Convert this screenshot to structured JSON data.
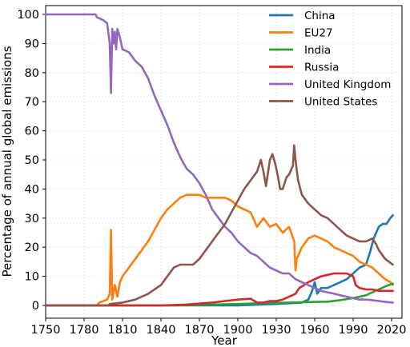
{
  "chart_data": {
    "type": "line",
    "xlabel": "Year",
    "ylabel": "Percentage of annual global emissions",
    "xlim": [
      1750,
      2022
    ],
    "ylim": [
      0,
      100
    ],
    "xticks": [
      1750,
      1780,
      1810,
      1840,
      1870,
      1900,
      1930,
      1960,
      1990,
      2020
    ],
    "yticks": [
      0,
      10,
      20,
      30,
      40,
      50,
      60,
      70,
      80,
      90,
      100
    ],
    "grid": true,
    "legend_position": "top-right",
    "series": [
      {
        "name": "China",
        "color": "#1f77b4",
        "points": [
          [
            1750,
            0
          ],
          [
            1900,
            0
          ],
          [
            1930,
            0.5
          ],
          [
            1950,
            1
          ],
          [
            1955,
            2
          ],
          [
            1958,
            5
          ],
          [
            1960,
            8
          ],
          [
            1962,
            4
          ],
          [
            1965,
            6
          ],
          [
            1970,
            6
          ],
          [
            1975,
            7
          ],
          [
            1980,
            8
          ],
          [
            1985,
            9
          ],
          [
            1990,
            11
          ],
          [
            1995,
            13
          ],
          [
            2000,
            14
          ],
          [
            2003,
            18
          ],
          [
            2006,
            23
          ],
          [
            2010,
            27
          ],
          [
            2013,
            28
          ],
          [
            2016,
            28
          ],
          [
            2019,
            30
          ],
          [
            2021,
            31
          ]
        ]
      },
      {
        "name": "EU27",
        "color": "#ff7f0e",
        "points": [
          [
            1750,
            0
          ],
          [
            1790,
            0
          ],
          [
            1792,
            1
          ],
          [
            1798,
            2
          ],
          [
            1800,
            4
          ],
          [
            1801,
            26
          ],
          [
            1802,
            2
          ],
          [
            1804,
            7
          ],
          [
            1806,
            3
          ],
          [
            1808,
            8
          ],
          [
            1810,
            10
          ],
          [
            1815,
            13
          ],
          [
            1820,
            16
          ],
          [
            1825,
            19
          ],
          [
            1830,
            22
          ],
          [
            1835,
            26
          ],
          [
            1840,
            30
          ],
          [
            1845,
            33
          ],
          [
            1850,
            35
          ],
          [
            1855,
            37
          ],
          [
            1860,
            38
          ],
          [
            1865,
            38
          ],
          [
            1870,
            38
          ],
          [
            1875,
            37
          ],
          [
            1880,
            37
          ],
          [
            1885,
            37
          ],
          [
            1890,
            37
          ],
          [
            1895,
            36
          ],
          [
            1900,
            34
          ],
          [
            1905,
            33
          ],
          [
            1910,
            32
          ],
          [
            1915,
            27
          ],
          [
            1920,
            30
          ],
          [
            1925,
            27
          ],
          [
            1930,
            28
          ],
          [
            1935,
            25
          ],
          [
            1940,
            27
          ],
          [
            1944,
            22
          ],
          [
            1945,
            12
          ],
          [
            1946,
            16
          ],
          [
            1948,
            18
          ],
          [
            1950,
            20
          ],
          [
            1955,
            23
          ],
          [
            1960,
            24
          ],
          [
            1965,
            23
          ],
          [
            1970,
            22
          ],
          [
            1975,
            20
          ],
          [
            1980,
            19
          ],
          [
            1985,
            18
          ],
          [
            1990,
            17
          ],
          [
            1995,
            15
          ],
          [
            2000,
            14
          ],
          [
            2005,
            13
          ],
          [
            2010,
            11
          ],
          [
            2015,
            9
          ],
          [
            2019,
            8
          ],
          [
            2021,
            7
          ]
        ]
      },
      {
        "name": "India",
        "color": "#2ca02c",
        "points": [
          [
            1750,
            0
          ],
          [
            1850,
            0
          ],
          [
            1880,
            0.3
          ],
          [
            1900,
            0.5
          ],
          [
            1920,
            0.8
          ],
          [
            1940,
            1
          ],
          [
            1960,
            1.2
          ],
          [
            1970,
            1.3
          ],
          [
            1980,
            1.8
          ],
          [
            1990,
            2.5
          ],
          [
            2000,
            3.5
          ],
          [
            2010,
            5.5
          ],
          [
            2015,
            6.5
          ],
          [
            2021,
            7.5
          ]
        ]
      },
      {
        "name": "Russia",
        "color": "#d62728",
        "points": [
          [
            1750,
            0
          ],
          [
            1840,
            0
          ],
          [
            1860,
            0.3
          ],
          [
            1880,
            1
          ],
          [
            1890,
            1.5
          ],
          [
            1900,
            2
          ],
          [
            1910,
            2.3
          ],
          [
            1915,
            1
          ],
          [
            1920,
            1
          ],
          [
            1925,
            1.5
          ],
          [
            1930,
            1.5
          ],
          [
            1935,
            2
          ],
          [
            1940,
            3
          ],
          [
            1945,
            4
          ],
          [
            1948,
            6
          ],
          [
            1950,
            6.5
          ],
          [
            1955,
            8
          ],
          [
            1960,
            9
          ],
          [
            1965,
            10
          ],
          [
            1970,
            10.5
          ],
          [
            1975,
            11
          ],
          [
            1980,
            11
          ],
          [
            1985,
            11
          ],
          [
            1990,
            10
          ],
          [
            1992,
            7
          ],
          [
            1995,
            6
          ],
          [
            2000,
            5.5
          ],
          [
            2005,
            5.5
          ],
          [
            2010,
            5
          ],
          [
            2015,
            5
          ],
          [
            2021,
            5
          ]
        ]
      },
      {
        "name": "United Kingdom",
        "color": "#9467bd",
        "points": [
          [
            1750,
            100
          ],
          [
            1789,
            100
          ],
          [
            1790,
            99
          ],
          [
            1795,
            98
          ],
          [
            1798,
            97
          ],
          [
            1800,
            90
          ],
          [
            1801,
            73
          ],
          [
            1802,
            95
          ],
          [
            1803,
            90
          ],
          [
            1804,
            94
          ],
          [
            1805,
            88
          ],
          [
            1806,
            95
          ],
          [
            1808,
            92
          ],
          [
            1810,
            88
          ],
          [
            1815,
            87
          ],
          [
            1820,
            84
          ],
          [
            1825,
            82
          ],
          [
            1830,
            78
          ],
          [
            1835,
            72
          ],
          [
            1840,
            67
          ],
          [
            1845,
            62
          ],
          [
            1850,
            56
          ],
          [
            1855,
            51
          ],
          [
            1860,
            47
          ],
          [
            1865,
            45
          ],
          [
            1870,
            42
          ],
          [
            1875,
            38
          ],
          [
            1880,
            33
          ],
          [
            1885,
            30
          ],
          [
            1890,
            27
          ],
          [
            1895,
            25
          ],
          [
            1900,
            22
          ],
          [
            1905,
            20
          ],
          [
            1910,
            18
          ],
          [
            1915,
            17
          ],
          [
            1920,
            15
          ],
          [
            1925,
            13
          ],
          [
            1930,
            12
          ],
          [
            1935,
            11
          ],
          [
            1940,
            11
          ],
          [
            1945,
            9
          ],
          [
            1950,
            8
          ],
          [
            1955,
            7
          ],
          [
            1960,
            6
          ],
          [
            1965,
            5
          ],
          [
            1970,
            4.5
          ],
          [
            1975,
            4
          ],
          [
            1980,
            3.5
          ],
          [
            1985,
            3
          ],
          [
            1990,
            2.5
          ],
          [
            1995,
            2
          ],
          [
            2000,
            2
          ],
          [
            2005,
            1.8
          ],
          [
            2010,
            1.5
          ],
          [
            2015,
            1.2
          ],
          [
            2021,
            1
          ]
        ]
      },
      {
        "name": "United States",
        "color": "#8c564b",
        "points": [
          [
            1750,
            0
          ],
          [
            1799,
            0
          ],
          [
            1800,
            0.5
          ],
          [
            1810,
            1
          ],
          [
            1820,
            2
          ],
          [
            1830,
            4
          ],
          [
            1840,
            7
          ],
          [
            1850,
            13
          ],
          [
            1855,
            14
          ],
          [
            1860,
            14
          ],
          [
            1865,
            14
          ],
          [
            1870,
            16
          ],
          [
            1875,
            19
          ],
          [
            1880,
            22
          ],
          [
            1885,
            25
          ],
          [
            1890,
            28
          ],
          [
            1895,
            32
          ],
          [
            1900,
            36
          ],
          [
            1905,
            40
          ],
          [
            1910,
            43
          ],
          [
            1915,
            46
          ],
          [
            1918,
            50
          ],
          [
            1920,
            46
          ],
          [
            1922,
            41
          ],
          [
            1925,
            50
          ],
          [
            1927,
            52
          ],
          [
            1929,
            49
          ],
          [
            1931,
            45
          ],
          [
            1933,
            40
          ],
          [
            1935,
            40
          ],
          [
            1938,
            44
          ],
          [
            1940,
            45
          ],
          [
            1943,
            48
          ],
          [
            1944,
            55
          ],
          [
            1945,
            50
          ],
          [
            1947,
            43
          ],
          [
            1950,
            38
          ],
          [
            1955,
            35
          ],
          [
            1960,
            33
          ],
          [
            1965,
            31
          ],
          [
            1970,
            30
          ],
          [
            1975,
            28
          ],
          [
            1980,
            26
          ],
          [
            1985,
            24
          ],
          [
            1990,
            23
          ],
          [
            1995,
            22
          ],
          [
            2000,
            22
          ],
          [
            2005,
            23
          ],
          [
            2008,
            21
          ],
          [
            2010,
            19
          ],
          [
            2015,
            16
          ],
          [
            2018,
            15
          ],
          [
            2021,
            14
          ]
        ]
      }
    ]
  }
}
